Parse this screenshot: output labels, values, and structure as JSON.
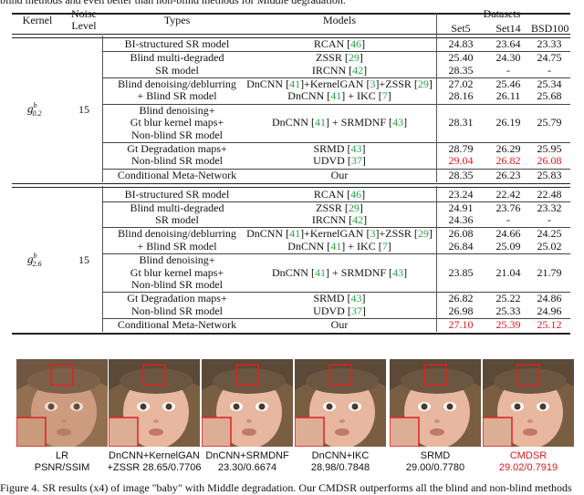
{
  "top_caption": "blind methods and even better than non-blind methods for Middle degradation.",
  "header": {
    "kernel": "Kernel",
    "noise_level_1": "Noise",
    "noise_level_2": "Level",
    "types": "Types",
    "models": "Models",
    "datasets": "Datasets",
    "set5": "Set5",
    "set14": "Set14",
    "bsd100": "BSD100"
  },
  "blocks": [
    {
      "kernel": "g",
      "kernel_sub": "0.2",
      "kernel_sup": "b",
      "noise": "15",
      "groups": [
        {
          "type_lines": [
            "BI-structured SR model"
          ],
          "rows": [
            {
              "model": "RCAN [46]",
              "set5": "24.83",
              "set14": "23.64",
              "bsd": "23.33"
            }
          ]
        },
        {
          "type_lines": [
            "Blind multi-degraded",
            "SR model"
          ],
          "rows": [
            {
              "model": "ZSSR [29]",
              "set5": "25.40",
              "set14": "24.30",
              "bsd": "24.75"
            },
            {
              "model": "IRCNN [42]",
              "set5": "28.35",
              "set14": "-",
              "bsd": "-"
            }
          ]
        },
        {
          "type_lines": [
            "Blind denoising/deblurring",
            "+ Blind SR model"
          ],
          "rows": [
            {
              "model": "DnCNN [41]+KernelGAN [3]+ZSSR [29]",
              "set5": "27.02",
              "set14": "25.46",
              "bsd": "25.34"
            },
            {
              "model": "DnCNN [41] + IKC [7]",
              "set5": "28.16",
              "set14": "26.11",
              "bsd": "25.68"
            }
          ]
        },
        {
          "type_lines": [
            "Blind denoising+",
            "Gt blur kernel maps+",
            "Non-blind SR model"
          ],
          "rows": [
            {
              "model": "DnCNN [41] + SRMDNF [43]",
              "set5": "28.31",
              "set14": "26.19",
              "bsd": "25.79"
            }
          ]
        },
        {
          "type_lines": [
            "Gt Degradation maps+",
            "Non-blind SR model"
          ],
          "rows": [
            {
              "model": "SRMD [43]",
              "set5": "28.79",
              "set14": "26.29",
              "bsd": "25.95"
            },
            {
              "model": "UDVD [37]",
              "set5": "29.04",
              "set14": "26.82",
              "bsd": "26.08",
              "red": true
            }
          ]
        },
        {
          "type_lines": [
            "Conditional Meta-Network"
          ],
          "rows": [
            {
              "model": "Our",
              "set5": "28.35",
              "set14": "26.23",
              "bsd": "25.83"
            }
          ]
        }
      ]
    },
    {
      "kernel": "g",
      "kernel_sub": "2.6",
      "kernel_sup": "b",
      "noise": "15",
      "groups": [
        {
          "type_lines": [
            "BI-structured SR model"
          ],
          "rows": [
            {
              "model": "RCAN [46]",
              "set5": "23.24",
              "set14": "22.42",
              "bsd": "22.48"
            }
          ]
        },
        {
          "type_lines": [
            "Blind multi-degraded",
            "SR model"
          ],
          "rows": [
            {
              "model": "ZSSR [29]",
              "set5": "24.91",
              "set14": "23.76",
              "bsd": "23.32"
            },
            {
              "model": "IRCNN [42]",
              "set5": "24.36",
              "set14": "-",
              "bsd": "-"
            }
          ]
        },
        {
          "type_lines": [
            "Blind denoising/deblurring",
            "+ Blind SR model"
          ],
          "rows": [
            {
              "model": "DnCNN [41]+KernelGAN [3]+ZSSR [29]",
              "set5": "26.08",
              "set14": "24.66",
              "bsd": "24.25"
            },
            {
              "model": "DnCNN [41] + IKC [7]",
              "set5": "26.84",
              "set14": "25.09",
              "bsd": "25.02"
            }
          ]
        },
        {
          "type_lines": [
            "Blind denoising+",
            "Gt blur kernel maps+",
            "Non-blind SR model"
          ],
          "rows": [
            {
              "model": "DnCNN [41] + SRMDNF [43]",
              "set5": "23.85",
              "set14": "21.04",
              "bsd": "21.79"
            }
          ]
        },
        {
          "type_lines": [
            "Gt Degradation maps+",
            "Non-blind SR model"
          ],
          "rows": [
            {
              "model": "SRMD [43]",
              "set5": "26.82",
              "set14": "25.22",
              "bsd": "24.86"
            },
            {
              "model": "UDVD [37]",
              "set5": "26.98",
              "set14": "25.33",
              "bsd": "24.96"
            }
          ]
        },
        {
          "type_lines": [
            "Conditional Meta-Network"
          ],
          "rows": [
            {
              "model": "Our",
              "set5": "27.10",
              "set14": "25.39",
              "bsd": "25.12",
              "red": true
            }
          ]
        }
      ]
    }
  ],
  "figure": {
    "panels": [
      {
        "line1": "LR",
        "line2": "PSNR/SSIM",
        "red": false
      },
      {
        "line1": "DnCNN+KernelGAN",
        "line2": "+ZSSR 28.65/0.7706",
        "red": false
      },
      {
        "line1": "DnCNN+SRMDNF",
        "line2": "23.30/0.6674",
        "red": false
      },
      {
        "line1": "DnCNN+IKC",
        "line2": "28.98/0.7848",
        "red": false
      },
      {
        "line1": "SRMD",
        "line2": "29.00/0.7780",
        "red": false
      },
      {
        "line1": "CMDSR",
        "line2": "29.02/0.7919",
        "red": true
      }
    ]
  },
  "bottom_caption": "Figure 4. SR results (x4) of image \"baby\" with Middle degradation. Our CMDSR outperforms all the blind and non-blind methods",
  "colors": {
    "highlight": "#e0161a",
    "citation": "#2aa14a",
    "zoom_box": "#e02020"
  }
}
